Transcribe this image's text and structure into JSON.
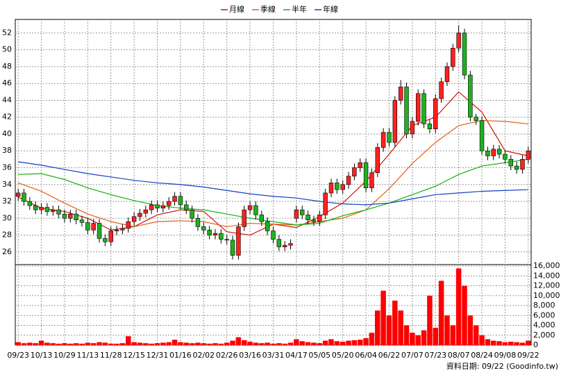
{
  "chart_data": {
    "type": "candlestick",
    "legend": [
      {
        "name": "月線",
        "color": "#d01010"
      },
      {
        "name": "季線",
        "color": "#e06010"
      },
      {
        "name": "半年",
        "color": "#10b010"
      },
      {
        "name": "年線",
        "color": "#1040c0"
      }
    ],
    "categories": [
      "09/23",
      null,
      null,
      null,
      "10/13",
      null,
      null,
      null,
      "10/29",
      null,
      null,
      null,
      "11/13",
      null,
      null,
      null,
      "11/28",
      null,
      null,
      null,
      "12/15",
      null,
      null,
      null,
      "12/31",
      null,
      null,
      null,
      "01/16",
      null,
      null,
      null,
      "02/02",
      null,
      null,
      null,
      "02/26",
      null,
      null,
      null,
      "03/16",
      null,
      null,
      null,
      "03/31",
      null,
      null,
      null,
      "04/17",
      null,
      null,
      null,
      "05/05",
      null,
      null,
      null,
      "05/20",
      null,
      null,
      null,
      "06/04",
      null,
      null,
      null,
      "06/22",
      null,
      null,
      null,
      "07/07",
      null,
      null,
      null,
      "07/23",
      null,
      null,
      null,
      "08/07",
      null,
      null,
      null,
      "08/24",
      null,
      null,
      null,
      "09/08",
      null,
      null,
      null,
      "09/22"
    ],
    "open": [
      32.6,
      33.0,
      32.0,
      31.5,
      31.0,
      31.3,
      30.8,
      31.0,
      30.5,
      30.0,
      30.5,
      29.8,
      29.5,
      28.6,
      29.4,
      27.6,
      27.2,
      28.5,
      28.6,
      28.8,
      29.6,
      30.2,
      30.6,
      31.0,
      31.6,
      31.2,
      31.5,
      32.0,
      32.6,
      31.6,
      31.0,
      30.0,
      29.0,
      28.6,
      28.0,
      28.2,
      27.5,
      27.4,
      25.6,
      29.0,
      31.0,
      31.5,
      30.4,
      29.6,
      28.5,
      27.5,
      26.6,
      26.8,
      30.0,
      31.0,
      30.4,
      29.8,
      29.6,
      30.4,
      33.0,
      34.2,
      33.4,
      34.0,
      35.0,
      36.0,
      36.6,
      33.6,
      35.4,
      38.4,
      40.2,
      39.0,
      44.0,
      45.6,
      40.0,
      41.5,
      44.8,
      41.2,
      40.6,
      44.2,
      46.2,
      48.0,
      50.2,
      52.0,
      47.0,
      42.0,
      41.6,
      38.0,
      37.4,
      38.2,
      37.6,
      37.0,
      36.2,
      35.8,
      37.0
    ],
    "high": [
      33.5,
      33.5,
      32.5,
      32.0,
      31.8,
      31.8,
      31.5,
      31.5,
      31.0,
      31.0,
      31.0,
      30.3,
      30.0,
      29.9,
      29.9,
      28.1,
      29.0,
      29.1,
      29.3,
      30.1,
      30.7,
      31.1,
      31.5,
      32.1,
      32.1,
      32.0,
      32.5,
      33.1,
      33.1,
      32.1,
      31.5,
      30.5,
      29.5,
      29.1,
      28.7,
      28.7,
      28.0,
      27.9,
      29.5,
      31.5,
      32.0,
      32.0,
      30.9,
      30.1,
      29.0,
      28.0,
      27.3,
      27.5,
      31.5,
      31.5,
      30.9,
      30.3,
      30.9,
      33.5,
      34.7,
      34.7,
      34.5,
      35.5,
      36.5,
      37.1,
      37.1,
      35.9,
      38.9,
      40.7,
      40.7,
      44.5,
      46.4,
      46.1,
      42.0,
      45.3,
      45.3,
      41.7,
      44.7,
      46.7,
      48.5,
      50.7,
      52.9,
      52.5,
      47.5,
      42.4,
      42.1,
      38.5,
      38.7,
      38.7,
      38.1,
      37.5,
      36.7,
      37.5,
      38.5
    ],
    "low": [
      32.1,
      31.5,
      31.0,
      30.5,
      30.5,
      30.3,
      30.3,
      30.0,
      29.5,
      29.5,
      29.3,
      29.0,
      28.1,
      28.1,
      27.1,
      26.7,
      26.7,
      28.0,
      28.1,
      28.3,
      29.1,
      29.7,
      30.1,
      30.5,
      30.7,
      30.7,
      31.0,
      31.5,
      31.1,
      30.5,
      29.5,
      28.5,
      28.1,
      27.5,
      27.5,
      27.0,
      26.9,
      25.1,
      25.1,
      28.5,
      30.5,
      29.9,
      29.1,
      28.0,
      27.0,
      26.1,
      26.1,
      26.3,
      29.5,
      29.9,
      29.3,
      29.1,
      29.1,
      29.9,
      32.5,
      32.9,
      32.9,
      33.5,
      34.5,
      35.5,
      33.1,
      33.1,
      34.9,
      37.9,
      38.5,
      38.5,
      43.5,
      39.5,
      39.5,
      41.0,
      40.7,
      40.1,
      40.1,
      43.7,
      45.7,
      47.5,
      49.7,
      46.5,
      41.5,
      41.1,
      37.5,
      36.9,
      36.9,
      37.1,
      36.5,
      35.7,
      35.3,
      35.3,
      36.5
    ],
    "close": [
      33.0,
      32.0,
      31.5,
      31.0,
      31.3,
      30.8,
      31.0,
      30.5,
      30.0,
      30.5,
      29.8,
      29.5,
      28.6,
      29.4,
      27.6,
      27.2,
      28.5,
      28.6,
      28.8,
      29.6,
      30.2,
      30.6,
      31.0,
      31.6,
      31.2,
      31.5,
      32.0,
      32.6,
      31.6,
      31.0,
      30.0,
      29.0,
      28.6,
      28.0,
      28.2,
      27.5,
      27.4,
      25.6,
      29.0,
      31.0,
      31.5,
      30.4,
      29.6,
      28.5,
      27.5,
      26.6,
      26.8,
      27.0,
      31.0,
      30.4,
      29.8,
      29.6,
      30.4,
      33.0,
      34.2,
      33.4,
      34.0,
      35.0,
      36.0,
      36.6,
      33.6,
      35.4,
      38.4,
      40.2,
      39.0,
      44.0,
      45.6,
      40.0,
      41.5,
      44.8,
      41.2,
      40.6,
      44.2,
      46.2,
      48.0,
      50.2,
      52.0,
      47.0,
      42.0,
      41.6,
      38.0,
      37.4,
      38.2,
      37.6,
      37.0,
      36.2,
      35.8,
      37.0,
      38.0
    ],
    "up_color": "#ff2020",
    "down_color": "#20b020",
    "ylim": [
      24.5,
      53.6
    ],
    "yticks": [
      26,
      28,
      30,
      32,
      34,
      36,
      38,
      40,
      42,
      44,
      46,
      48,
      50,
      52
    ],
    "grid": true,
    "moving_averages": [
      {
        "name": "月線",
        "color": "#d01010",
        "values": [
          32.5,
          31.2,
          30.8,
          30.0,
          28.6,
          29.0,
          30.4,
          31.0,
          30.8,
          28.4,
          28.0,
          29.3,
          28.9,
          30.2,
          31.8,
          34.4,
          37.6,
          41.0,
          42.0,
          45.0,
          42.6,
          38.0,
          37.4
        ]
      },
      {
        "name": "季線",
        "color": "#e06010",
        "values": [
          34.2,
          33.2,
          31.8,
          30.5,
          29.6,
          29.0,
          29.6,
          29.7,
          29.6,
          29.0,
          29.4,
          29.3,
          29.2,
          29.6,
          30.0,
          31.0,
          33.5,
          36.5,
          39.0,
          41.0,
          41.6,
          41.5,
          41.2
        ]
      },
      {
        "name": "半年",
        "color": "#10b010",
        "values": [
          35.2,
          35.3,
          34.6,
          33.6,
          32.8,
          32.1,
          31.5,
          31.2,
          31.0,
          30.5,
          30.0,
          29.6,
          29.2,
          29.4,
          30.3,
          31.0,
          31.8,
          32.8,
          33.8,
          35.2,
          36.2,
          36.6,
          37.0
        ]
      },
      {
        "name": "年線",
        "color": "#1040c0",
        "values": [
          36.7,
          36.3,
          35.8,
          35.3,
          34.9,
          34.5,
          34.2,
          34.0,
          33.7,
          33.3,
          32.9,
          32.6,
          32.4,
          32.0,
          31.7,
          31.6,
          31.8,
          32.3,
          32.8,
          33.0,
          33.2,
          33.3,
          33.4
        ]
      }
    ],
    "volume": {
      "color": "#ff0000",
      "values": [
        600,
        400,
        500,
        400,
        900,
        500,
        400,
        300,
        400,
        300,
        400,
        300,
        500,
        400,
        600,
        500,
        300,
        300,
        400,
        1800,
        600,
        500,
        400,
        300,
        400,
        500,
        600,
        1100,
        600,
        500,
        400,
        500,
        400,
        300,
        400,
        300,
        500,
        900,
        1600,
        1000,
        700,
        500,
        400,
        500,
        300,
        400,
        300,
        500,
        1200,
        800,
        600,
        500,
        400,
        900,
        1200,
        800,
        700,
        900,
        1000,
        1100,
        1400,
        2500,
        7000,
        11000,
        6000,
        9000,
        7000,
        4000,
        2500,
        2000,
        3000,
        10000,
        3500,
        13000,
        6000,
        4000,
        15500,
        12000,
        6000,
        4000,
        2000,
        1200,
        900,
        800,
        600,
        700,
        600,
        500,
        900
      ],
      "ylim": [
        0,
        16000
      ],
      "yticks": [
        0,
        {
          "value": 2000,
          "label": "2,000"
        },
        {
          "value": 4000,
          "label": "4,000"
        },
        {
          "value": 6000,
          "label": "6,000"
        },
        {
          "value": 8000,
          "label": "8,000"
        },
        {
          "value": 10000,
          "label": "10,000"
        },
        {
          "value": 12000,
          "label": "12,000"
        },
        {
          "value": 14000,
          "label": "14,000"
        },
        {
          "value": 16000,
          "label": "16,000"
        }
      ]
    },
    "footer": "資料日期: 09/22 (Goodinfo.tw)"
  }
}
